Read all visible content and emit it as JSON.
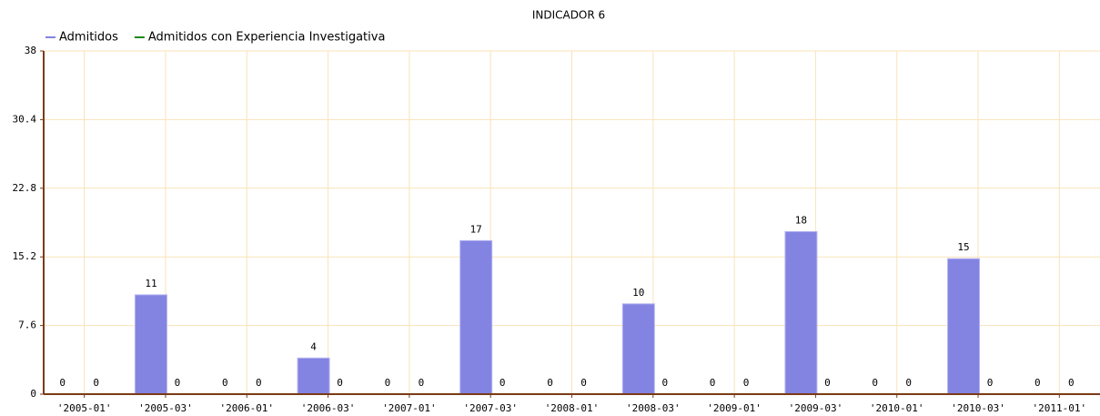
{
  "chart_data": {
    "type": "bar",
    "title": "INDICADOR 6",
    "categories": [
      "'2005-01'",
      "'2005-03'",
      "'2006-01'",
      "'2006-03'",
      "'2007-01'",
      "'2007-03'",
      "'2008-01'",
      "'2008-03'",
      "'2009-01'",
      "'2009-03'",
      "'2010-01'",
      "'2010-03'",
      "'2011-01'"
    ],
    "series": [
      {
        "name": "Admitidos",
        "color": "#8383e2",
        "values": [
          0,
          11,
          0,
          4,
          0,
          17,
          0,
          10,
          0,
          18,
          0,
          15,
          0
        ]
      },
      {
        "name": "Admitidos con Experiencia Investigativa",
        "color": "#1a8a1a",
        "values": [
          0,
          0,
          0,
          0,
          0,
          0,
          0,
          0,
          0,
          0,
          0,
          0,
          0
        ]
      }
    ],
    "ylim": [
      0,
      38
    ],
    "yticks": [
      0,
      7.6,
      15.2,
      22.8,
      30.4,
      38
    ],
    "grid": true,
    "legend": "top-left"
  }
}
